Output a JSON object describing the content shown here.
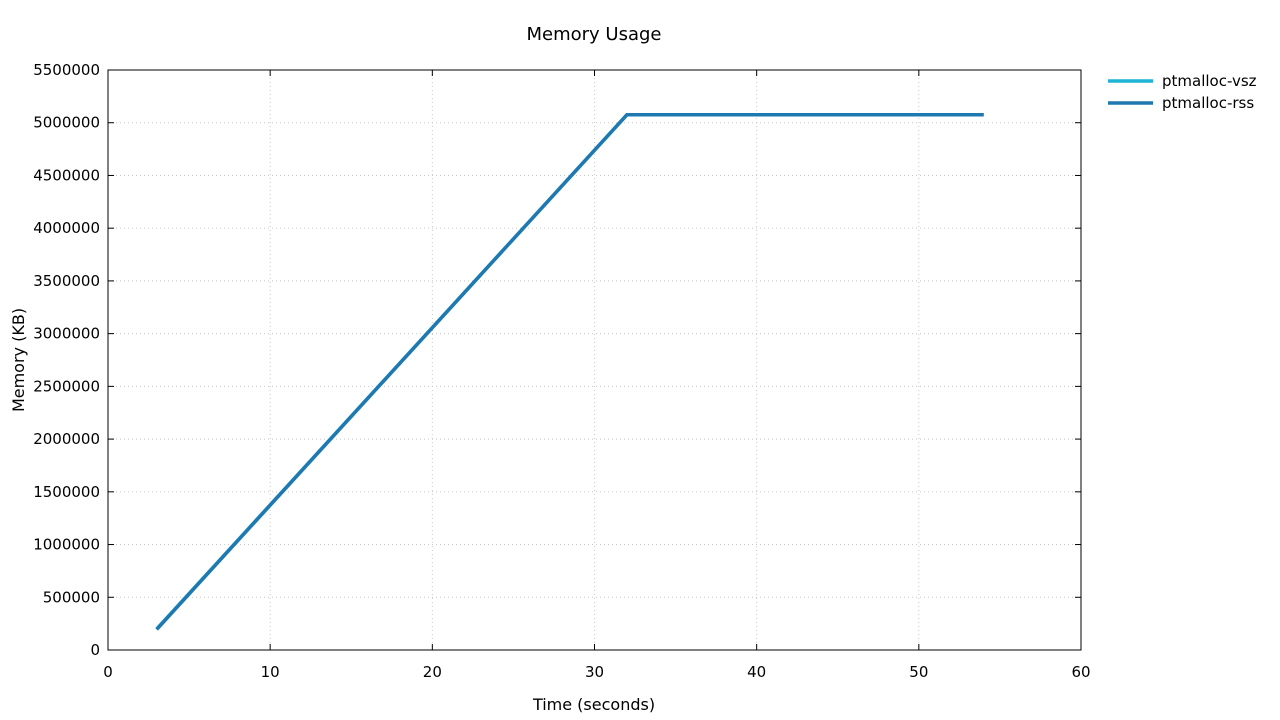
{
  "chart_data": {
    "type": "line",
    "title": "Memory Usage",
    "xlabel": "Time (seconds)",
    "ylabel": "Memory (KB)",
    "xlim": [
      0,
      60
    ],
    "ylim": [
      0,
      5500000
    ],
    "xticks": [
      0,
      10,
      20,
      30,
      40,
      50,
      60
    ],
    "yticks": [
      0,
      500000,
      1000000,
      1500000,
      2000000,
      2500000,
      3000000,
      3500000,
      4000000,
      4500000,
      5000000,
      5500000
    ],
    "grid": true,
    "legend_position": "outside-top-right",
    "series": [
      {
        "name": "ptmalloc-vsz",
        "color": "#1fb3d6",
        "x": [
          3,
          32,
          54
        ],
        "y": [
          200000,
          5075000,
          5075000
        ]
      },
      {
        "name": "ptmalloc-rss",
        "color": "#1f78b0",
        "x": [
          3,
          32,
          54
        ],
        "y": [
          195000,
          5075000,
          5075000
        ]
      }
    ]
  }
}
